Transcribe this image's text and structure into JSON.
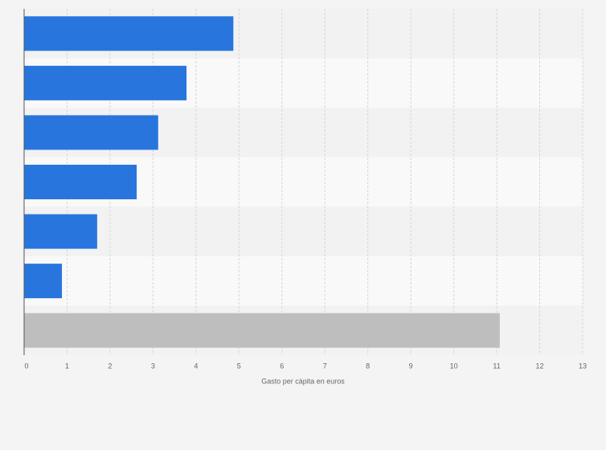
{
  "chart_data": {
    "type": "hbar",
    "x_label": "Gasto per càpita en euros",
    "categories": [
      null,
      null,
      null,
      null,
      null,
      null,
      null
    ],
    "values": [
      4.87,
      3.78,
      3.12,
      2.62,
      1.7,
      0.88,
      11.07
    ],
    "colors": [
      "#2876dd",
      "#2876dd",
      "#2876dd",
      "#2876dd",
      "#2876dd",
      "#2876dd",
      "#bebebe"
    ],
    "xlim": [
      0,
      13
    ],
    "xticks": [
      0,
      1,
      2,
      3,
      4,
      5,
      6,
      7,
      8,
      9,
      10,
      11,
      12,
      13
    ],
    "grid": true
  }
}
